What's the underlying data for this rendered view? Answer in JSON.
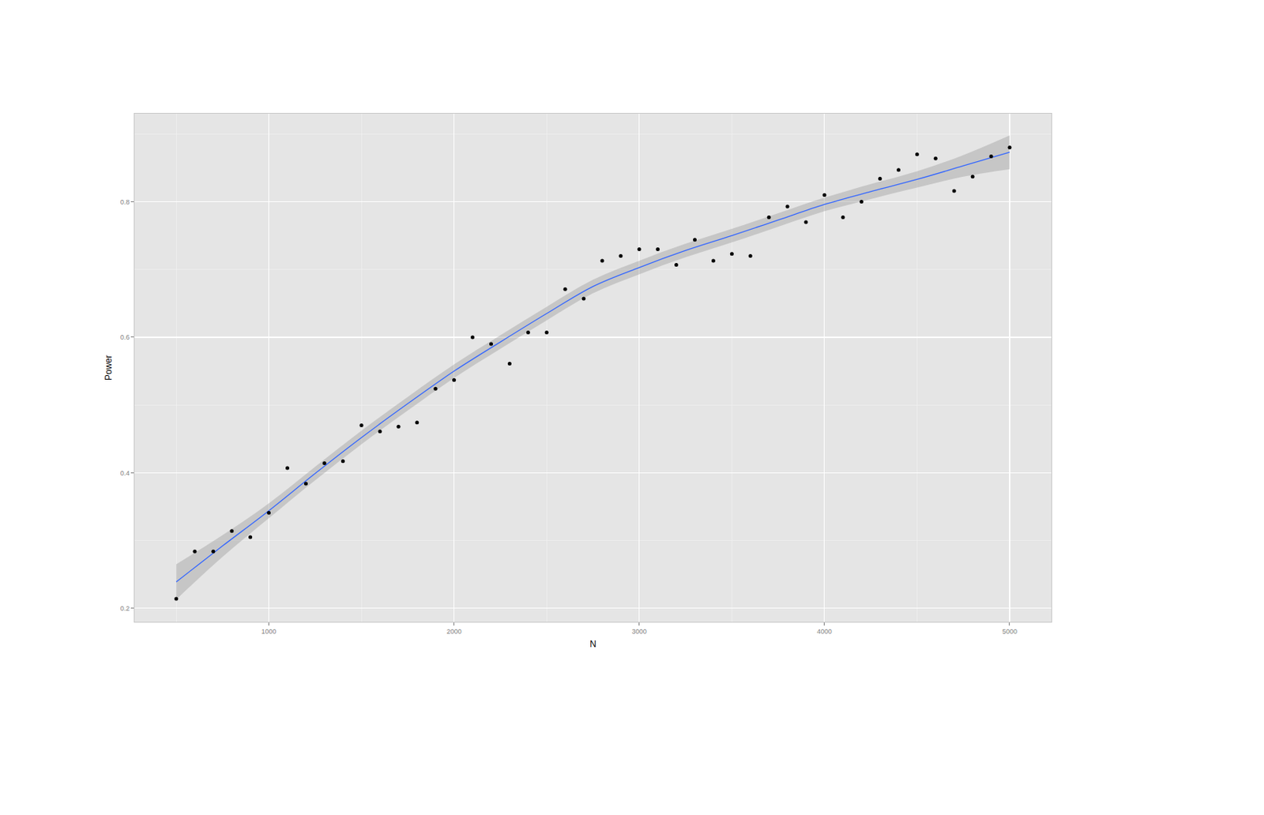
{
  "chart_data": {
    "type": "scatter",
    "x_label": "N",
    "y_label": "Power",
    "x": [
      500,
      600,
      700,
      800,
      900,
      1000,
      1100,
      1200,
      1300,
      1400,
      1500,
      1600,
      1700,
      1800,
      1900,
      2000,
      2100,
      2200,
      2300,
      2400,
      2500,
      2600,
      2700,
      2800,
      2900,
      3000,
      3100,
      3200,
      3300,
      3400,
      3500,
      3600,
      3700,
      3800,
      3900,
      4000,
      4100,
      4200,
      4300,
      4400,
      4500,
      4600,
      4700,
      4800,
      4900,
      5000
    ],
    "values": [
      0.214,
      0.284,
      0.284,
      0.314,
      0.305,
      0.341,
      0.407,
      0.384,
      0.414,
      0.417,
      0.47,
      0.461,
      0.468,
      0.474,
      0.524,
      0.537,
      0.6,
      0.59,
      0.561,
      0.607,
      0.607,
      0.671,
      0.657,
      0.713,
      0.72,
      0.73,
      0.73,
      0.707,
      0.744,
      0.713,
      0.723,
      0.72,
      0.777,
      0.793,
      0.77,
      0.81,
      0.777,
      0.8,
      0.834,
      0.847,
      0.87,
      0.864,
      0.816,
      0.837,
      0.867,
      0.88
    ],
    "color": "#000000",
    "marker": "circle",
    "fit": {
      "type": "line",
      "color": "#3366ff",
      "x": [
        500,
        750,
        1000,
        1250,
        1500,
        1750,
        2000,
        2250,
        2500,
        2750,
        3000,
        3250,
        3500,
        3750,
        4000,
        4250,
        4500,
        4750,
        5000
      ],
      "values": [
        0.239,
        0.292,
        0.344,
        0.399,
        0.452,
        0.502,
        0.55,
        0.593,
        0.635,
        0.675,
        0.703,
        0.728,
        0.75,
        0.773,
        0.796,
        0.815,
        0.833,
        0.853,
        0.873
      ],
      "lower": [
        0.213,
        0.276,
        0.333,
        0.389,
        0.442,
        0.492,
        0.54,
        0.583,
        0.625,
        0.665,
        0.693,
        0.718,
        0.74,
        0.763,
        0.786,
        0.804,
        0.821,
        0.837,
        0.848
      ],
      "upper": [
        0.265,
        0.308,
        0.355,
        0.409,
        0.462,
        0.512,
        0.56,
        0.603,
        0.645,
        0.685,
        0.713,
        0.738,
        0.76,
        0.783,
        0.806,
        0.826,
        0.845,
        0.869,
        0.898
      ]
    },
    "xlim": [
      275,
      5225
    ],
    "xticks": [
      1000,
      2000,
      3000,
      4000,
      5000
    ],
    "ylim": [
      0.18,
      0.93
    ],
    "yticks": [
      0.2,
      0.4,
      0.6,
      0.8
    ],
    "grid": true
  }
}
